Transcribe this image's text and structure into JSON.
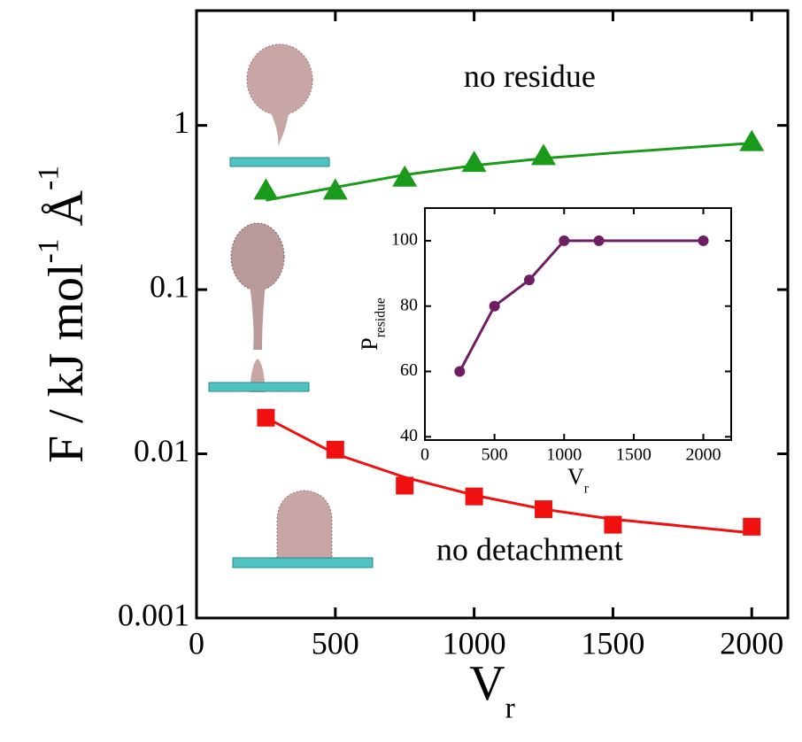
{
  "chart_data": [
    {
      "type": "scatter",
      "log_y": true,
      "x_label": {
        "main": "V",
        "sub": "r"
      },
      "y_label": {
        "main": "F / kJ mol",
        "sup1": "-1",
        "mid": " Å",
        "sup2": "-1"
      },
      "xlim": [
        0,
        2130
      ],
      "xticks": [
        0,
        500,
        1000,
        1500,
        2000
      ],
      "ylim": [
        0.001,
        5
      ],
      "yticks": [
        0.001,
        0.01,
        0.1,
        1
      ],
      "annotations": [
        {
          "text": "no residue",
          "x": 1200,
          "y": 1.9,
          "color": "#c0622a"
        },
        {
          "text": "no detachment",
          "x": 1200,
          "y": 0.0025,
          "color": "#c0622a"
        }
      ],
      "series": [
        {
          "color": "#1a9a1a",
          "marker": "triangle",
          "x": [
            250,
            500,
            750,
            1000,
            1250,
            2000
          ],
          "values": [
            0.4,
            0.4,
            0.48,
            0.59,
            0.65,
            0.79
          ],
          "fit": {
            "x": [
              250,
              500,
              750,
              1000,
              1250,
              1500,
              2000
            ],
            "values": [
              0.35,
              0.42,
              0.5,
              0.57,
              0.63,
              0.68,
              0.78
            ]
          }
        },
        {
          "color": "#f01010",
          "marker": "square",
          "x": [
            250,
            500,
            750,
            1000,
            1250,
            1500,
            2000
          ],
          "values": [
            0.0166,
            0.0106,
            0.0064,
            0.0055,
            0.0046,
            0.0037,
            0.0036
          ],
          "fit": {
            "x": [
              250,
              500,
              750,
              1000,
              1250,
              1500,
              2000
            ],
            "values": [
              0.0166,
              0.01,
              0.0072,
              0.0056,
              0.0046,
              0.004,
              0.0033
            ]
          }
        }
      ]
    },
    {
      "type": "line",
      "x_label": {
        "main": "V",
        "sub": "r"
      },
      "y_label": {
        "main": "P",
        "sub": "residue"
      },
      "xlim": [
        0,
        2200
      ],
      "xticks": [
        0,
        500,
        1000,
        1500,
        2000
      ],
      "ylim": [
        39,
        110
      ],
      "yticks": [
        40,
        60,
        80,
        100
      ],
      "series": [
        {
          "color": "#6e1f63",
          "x": [
            250,
            500,
            750,
            1000,
            1250,
            2000
          ],
          "values": [
            60,
            80,
            88,
            100,
            100,
            100
          ]
        }
      ]
    }
  ]
}
